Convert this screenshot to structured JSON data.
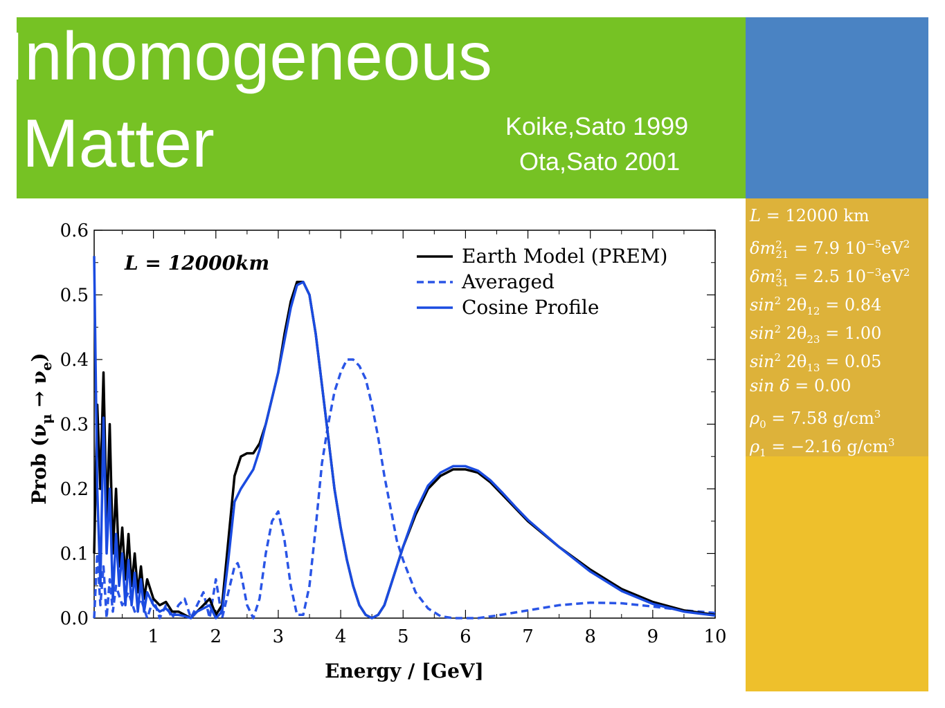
{
  "slide": {
    "title_line1": "Inhomogeneous",
    "title_line2": "Matter",
    "reference_1": "Koike,Sato 1999",
    "reference_2": "Ota,Sato 2001",
    "colors": {
      "title_band": "#76c224",
      "blue_box": "#4a83c3",
      "param_box": "#ddb23a",
      "yellow_box": "#eec02c",
      "text": "#ffffff"
    }
  },
  "parameters": [
    {
      "lhs": "L",
      "sup": "",
      "sub": "",
      "rhs": "= 12000 km"
    },
    {
      "lhs": "δm",
      "sup": "2",
      "sub": "21",
      "rhs": "= 7.9 10",
      "rhs_sup": "−5",
      "rhs_tail": "eV",
      "tail_sup": "2"
    },
    {
      "lhs": "δm",
      "sup": "2",
      "sub": "31",
      "rhs": "= 2.5 10",
      "rhs_sup": "−3",
      "rhs_tail": "eV",
      "tail_sup": "2"
    },
    {
      "lhs": "sin",
      "sup": "2",
      "sub": "",
      "mid": " 2θ",
      "mid_sub": "12",
      "rhs": " = 0.84"
    },
    {
      "lhs": "sin",
      "sup": "2",
      "sub": "",
      "mid": " 2θ",
      "mid_sub": "23",
      "rhs": " = 1.00"
    },
    {
      "lhs": "sin",
      "sup": "2",
      "sub": "",
      "mid": " 2θ",
      "mid_sub": "13",
      "rhs": " = 0.05"
    },
    {
      "lhs": "sin δ",
      "sup": "",
      "sub": "",
      "rhs": " = 0.00"
    },
    {
      "lhs": "ρ",
      "sup": "",
      "sub": "0",
      "rhs": " = 7.58 g/cm",
      "rhs_sup": "3"
    },
    {
      "lhs": "ρ",
      "sup": "",
      "sub": "1",
      "rhs": " = −2.16 g/cm",
      "rhs_sup": "3"
    }
  ],
  "chart_data": {
    "type": "line",
    "annotation": "L = 12000km",
    "xlabel": "Energy / [GeV]",
    "ylabel": "Prob (ν",
    "ylabel_sub1": "μ",
    "ylabel_arrow": " → ν",
    "ylabel_sub2": "e",
    "ylabel_end": ")",
    "xlim": [
      0.05,
      10
    ],
    "ylim": [
      0,
      0.6
    ],
    "x_ticks": [
      1,
      2,
      3,
      4,
      5,
      6,
      7,
      8,
      9,
      10
    ],
    "y_ticks": [
      0.0,
      0.1,
      0.2,
      0.3,
      0.4,
      0.5,
      0.6
    ],
    "y_tick_labels": [
      "0.0",
      "0.1",
      "0.2",
      "0.3",
      "0.4",
      "0.5",
      "0.6"
    ],
    "legend_position": "top-right",
    "series": [
      {
        "name": "Earth Model (PREM)",
        "color": "#000000",
        "style": "solid",
        "x": [
          0.05,
          0.1,
          0.15,
          0.2,
          0.25,
          0.3,
          0.35,
          0.4,
          0.45,
          0.5,
          0.55,
          0.6,
          0.65,
          0.7,
          0.75,
          0.8,
          0.85,
          0.9,
          1.0,
          1.1,
          1.2,
          1.3,
          1.4,
          1.5,
          1.6,
          1.7,
          1.8,
          1.9,
          2.0,
          2.1,
          2.2,
          2.3,
          2.4,
          2.5,
          2.6,
          2.7,
          2.8,
          2.9,
          3.0,
          3.1,
          3.2,
          3.3,
          3.4,
          3.5,
          3.6,
          3.7,
          3.8,
          3.9,
          4.0,
          4.1,
          4.2,
          4.3,
          4.4,
          4.5,
          4.6,
          4.7,
          4.8,
          4.9,
          5.0,
          5.2,
          5.4,
          5.6,
          5.8,
          6.0,
          6.2,
          6.4,
          6.6,
          6.8,
          7.0,
          7.5,
          8.0,
          8.5,
          9.0,
          9.5,
          10.0
        ],
        "y": [
          0.1,
          0.33,
          0.2,
          0.38,
          0.15,
          0.3,
          0.1,
          0.2,
          0.08,
          0.14,
          0.06,
          0.13,
          0.05,
          0.1,
          0.04,
          0.08,
          0.03,
          0.06,
          0.03,
          0.02,
          0.025,
          0.01,
          0.01,
          0.005,
          0.0,
          0.01,
          0.02,
          0.03,
          0.005,
          0.02,
          0.12,
          0.22,
          0.25,
          0.255,
          0.255,
          0.27,
          0.3,
          0.34,
          0.38,
          0.44,
          0.49,
          0.52,
          0.52,
          0.5,
          0.44,
          0.36,
          0.28,
          0.2,
          0.14,
          0.09,
          0.05,
          0.02,
          0.005,
          0.0,
          0.005,
          0.02,
          0.05,
          0.08,
          0.11,
          0.16,
          0.2,
          0.22,
          0.23,
          0.23,
          0.225,
          0.21,
          0.19,
          0.17,
          0.15,
          0.11,
          0.075,
          0.045,
          0.025,
          0.012,
          0.005
        ]
      },
      {
        "name": "Averaged",
        "color": "#2a55e6",
        "style": "dashed",
        "x": [
          0.05,
          0.1,
          0.15,
          0.2,
          0.25,
          0.3,
          0.35,
          0.4,
          0.5,
          0.6,
          0.7,
          0.8,
          0.9,
          1.0,
          1.1,
          1.2,
          1.3,
          1.4,
          1.5,
          1.6,
          1.7,
          1.8,
          1.9,
          2.0,
          2.1,
          2.2,
          2.3,
          2.35,
          2.4,
          2.5,
          2.6,
          2.7,
          2.8,
          2.9,
          3.0,
          3.1,
          3.2,
          3.3,
          3.4,
          3.5,
          3.6,
          3.7,
          3.8,
          3.9,
          4.0,
          4.1,
          4.2,
          4.3,
          4.4,
          4.5,
          4.6,
          4.7,
          4.8,
          4.9,
          5.0,
          5.2,
          5.4,
          5.6,
          5.8,
          6.0,
          6.2,
          6.5,
          7.0,
          7.5,
          8.0,
          8.5,
          9.0,
          9.5,
          10.0
        ],
        "y": [
          0.0,
          0.1,
          0.02,
          0.08,
          0.0,
          0.06,
          0.01,
          0.05,
          0.02,
          0.04,
          0.01,
          0.03,
          0.0,
          0.03,
          0.0,
          0.02,
          0.0,
          0.02,
          0.03,
          0.0,
          0.02,
          0.04,
          0.0,
          0.06,
          0.0,
          0.04,
          0.08,
          0.085,
          0.07,
          0.02,
          0.0,
          0.03,
          0.1,
          0.15,
          0.165,
          0.12,
          0.05,
          0.005,
          0.005,
          0.05,
          0.14,
          0.24,
          0.3,
          0.35,
          0.38,
          0.4,
          0.4,
          0.39,
          0.37,
          0.33,
          0.28,
          0.22,
          0.17,
          0.12,
          0.09,
          0.04,
          0.015,
          0.003,
          0.0,
          0.0,
          0.0,
          0.004,
          0.012,
          0.02,
          0.024,
          0.023,
          0.018,
          0.012,
          0.008
        ]
      },
      {
        "name": "Cosine Profile",
        "color": "#1a4be0",
        "style": "solid",
        "x": [
          0.05,
          0.1,
          0.15,
          0.2,
          0.25,
          0.3,
          0.35,
          0.4,
          0.45,
          0.5,
          0.55,
          0.6,
          0.65,
          0.7,
          0.75,
          0.8,
          0.85,
          0.9,
          1.0,
          1.1,
          1.2,
          1.3,
          1.4,
          1.5,
          1.6,
          1.7,
          1.8,
          1.9,
          2.0,
          2.1,
          2.2,
          2.3,
          2.4,
          2.5,
          2.6,
          2.7,
          2.8,
          2.9,
          3.0,
          3.1,
          3.2,
          3.3,
          3.4,
          3.5,
          3.6,
          3.7,
          3.8,
          3.9,
          4.0,
          4.1,
          4.2,
          4.3,
          4.4,
          4.5,
          4.6,
          4.7,
          4.8,
          4.9,
          5.0,
          5.2,
          5.4,
          5.6,
          5.8,
          6.0,
          6.2,
          6.4,
          6.6,
          6.8,
          7.0,
          7.5,
          8.0,
          8.5,
          9.0,
          9.5,
          10.0
        ],
        "y": [
          0.56,
          0.2,
          0.05,
          0.31,
          0.1,
          0.2,
          0.03,
          0.13,
          0.05,
          0.1,
          0.02,
          0.09,
          0.02,
          0.07,
          0.01,
          0.06,
          0.01,
          0.04,
          0.02,
          0.01,
          0.015,
          0.005,
          0.005,
          0.003,
          0.0,
          0.01,
          0.015,
          0.02,
          0.0,
          0.01,
          0.09,
          0.18,
          0.2,
          0.215,
          0.23,
          0.26,
          0.3,
          0.34,
          0.38,
          0.43,
          0.48,
          0.515,
          0.52,
          0.5,
          0.44,
          0.36,
          0.28,
          0.2,
          0.14,
          0.09,
          0.05,
          0.02,
          0.005,
          0.0,
          0.005,
          0.02,
          0.05,
          0.08,
          0.11,
          0.165,
          0.205,
          0.225,
          0.235,
          0.235,
          0.228,
          0.213,
          0.193,
          0.172,
          0.152,
          0.11,
          0.072,
          0.042,
          0.022,
          0.01,
          0.004
        ]
      }
    ]
  }
}
